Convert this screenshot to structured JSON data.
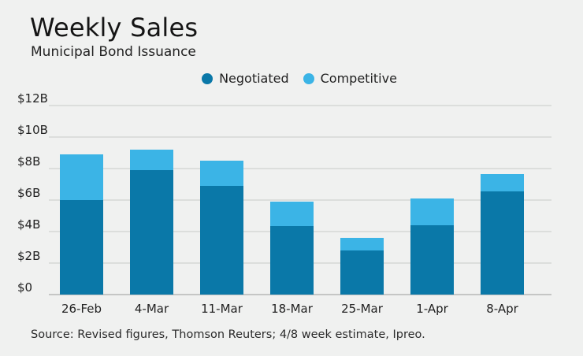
{
  "chart_data": {
    "type": "bar",
    "stacked": true,
    "title": "Weekly Sales",
    "subtitle": "Municipal Bond Issuance",
    "categories": [
      "26-Feb",
      "4-Mar",
      "11-Mar",
      "18-Mar",
      "25-Mar",
      "1-Apr",
      "8-Apr"
    ],
    "series": [
      {
        "name": "Negotiated",
        "color": "#0a78a8",
        "values": [
          6.0,
          7.9,
          6.9,
          4.35,
          2.8,
          4.4,
          6.55
        ]
      },
      {
        "name": "Competitive",
        "color": "#3bb4e6",
        "values": [
          2.9,
          1.3,
          1.6,
          1.55,
          0.8,
          1.7,
          1.1
        ]
      }
    ],
    "ylim": [
      0,
      12
    ],
    "yticks": [
      0,
      2,
      4,
      6,
      8,
      10,
      12
    ],
    "ytick_labels": [
      "$0",
      "$2B",
      "$4B",
      "$6B",
      "$8B",
      "$10B",
      "$12B"
    ],
    "grid": true,
    "legend_position": "top-center",
    "source": "Source: Revised figures, Thomson Reuters; 4/8 week estimate, Ipreo."
  }
}
